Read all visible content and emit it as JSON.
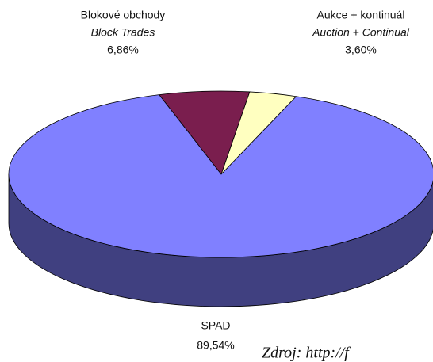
{
  "chart_data": {
    "type": "pie",
    "categories": [
      "Blokové obchody",
      "Aukce + kontinuál",
      "SPAD"
    ],
    "labels_en": [
      "Block Trades",
      "Auction + Continual",
      null
    ],
    "values": [
      6.86,
      3.6,
      89.54
    ],
    "value_labels": [
      "6,86%",
      "3,60%",
      "89,54%"
    ],
    "colors": [
      "#7a1e4e",
      "#ffffc0",
      "#8080ff"
    ],
    "source": "Zdroj: http://f"
  }
}
